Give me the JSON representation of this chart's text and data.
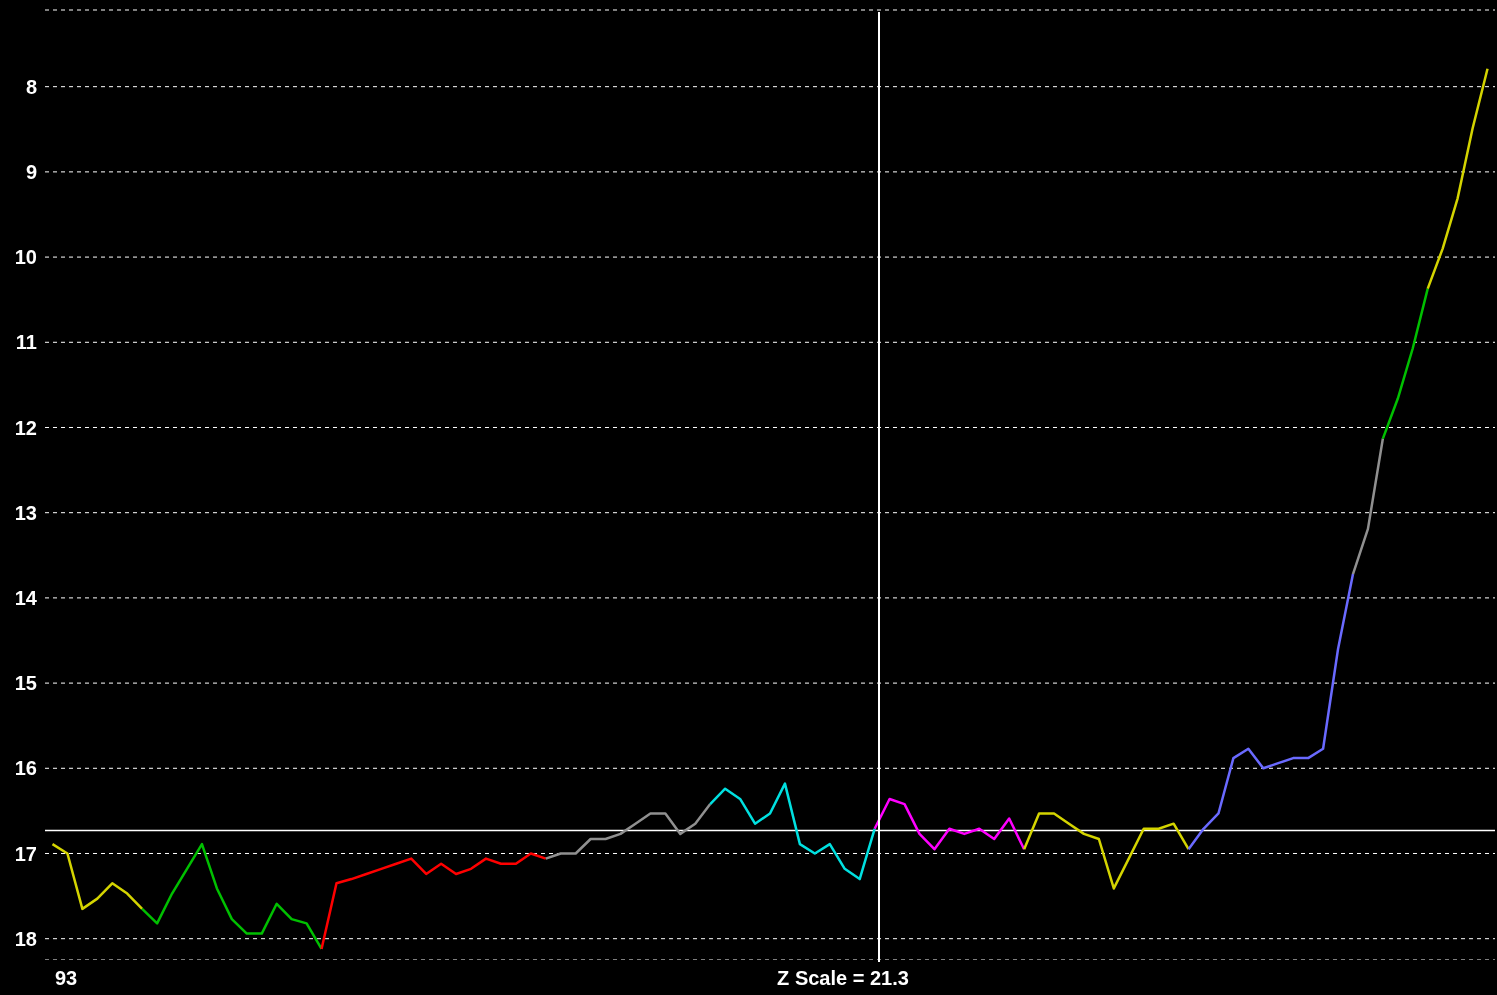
{
  "chart_data": {
    "type": "line",
    "categories": [
      null,
      null,
      null,
      null,
      null,
      null,
      null,
      null,
      null,
      null,
      null,
      null,
      null,
      null,
      null,
      null,
      null,
      null,
      null,
      null,
      null,
      null,
      null,
      null,
      null,
      null,
      null,
      null,
      null,
      null,
      null,
      null,
      null,
      null,
      null,
      null,
      null,
      null,
      null,
      null,
      null,
      null,
      null,
      null,
      null,
      null,
      null,
      null,
      null,
      null,
      null,
      null,
      null,
      null,
      null,
      null,
      null,
      null,
      null,
      null,
      null,
      null,
      null,
      null,
      null,
      null,
      null,
      null,
      null,
      null,
      null,
      null,
      null,
      null,
      null,
      null,
      null,
      null,
      null,
      null,
      null,
      null,
      null,
      null,
      null,
      null,
      null,
      null,
      null,
      null,
      null,
      null,
      null,
      null,
      null,
      null,
      null
    ],
    "series": [
      {
        "color": "#d4d400",
        "values": [
          16.89,
          17.0,
          17.65,
          17.53,
          17.35,
          17.47,
          17.65,
          null,
          null,
          null,
          null,
          null,
          null,
          null,
          null,
          null,
          null,
          null,
          null,
          null,
          null,
          null,
          null,
          null,
          null,
          null,
          null,
          null,
          null,
          null,
          null,
          null,
          null,
          null,
          null,
          null,
          null,
          null,
          null,
          null,
          null,
          null,
          null,
          null,
          null,
          null,
          null,
          null,
          null,
          null,
          null,
          null,
          null,
          null,
          null,
          null,
          null,
          null,
          null,
          null,
          null,
          null,
          null,
          null,
          null,
          null,
          null,
          null,
          null,
          null,
          null,
          null,
          null,
          null,
          null,
          null,
          null,
          null,
          null,
          null,
          null,
          null,
          null,
          null,
          null,
          null,
          null,
          null,
          null,
          null,
          null,
          null,
          null,
          null,
          null,
          null,
          null
        ]
      },
      {
        "color": "#00c000",
        "values": [
          null,
          null,
          null,
          null,
          null,
          null,
          17.65,
          17.82,
          17.47,
          17.18,
          16.89,
          17.41,
          17.77,
          17.94,
          17.94,
          17.59,
          17.77,
          17.82,
          18.12,
          null,
          null,
          null,
          null,
          null,
          null,
          null,
          null,
          null,
          null,
          null,
          null,
          null,
          null,
          null,
          null,
          null,
          null,
          null,
          null,
          null,
          null,
          null,
          null,
          null,
          null,
          null,
          null,
          null,
          null,
          null,
          null,
          null,
          null,
          null,
          null,
          null,
          null,
          null,
          null,
          null,
          null,
          null,
          null,
          null,
          null,
          null,
          null,
          null,
          null,
          null,
          null,
          null,
          null,
          null,
          null,
          null,
          null,
          null,
          null,
          null,
          null,
          null,
          null,
          null,
          null,
          null,
          null,
          null,
          null,
          null,
          null,
          null,
          null,
          null,
          null,
          null,
          null
        ]
      },
      {
        "color": "#ff0000",
        "values": [
          null,
          null,
          null,
          null,
          null,
          null,
          null,
          null,
          null,
          null,
          null,
          null,
          null,
          null,
          null,
          null,
          null,
          null,
          18.12,
          17.35,
          17.3,
          17.24,
          17.18,
          17.12,
          17.06,
          17.24,
          17.12,
          17.24,
          17.18,
          17.06,
          17.12,
          17.12,
          17.0,
          17.06,
          null,
          null,
          null,
          null,
          null,
          null,
          null,
          null,
          null,
          null,
          null,
          null,
          null,
          null,
          null,
          null,
          null,
          null,
          null,
          null,
          null,
          null,
          null,
          null,
          null,
          null,
          null,
          null,
          null,
          null,
          null,
          null,
          null,
          null,
          null,
          null,
          null,
          null,
          null,
          null,
          null,
          null,
          null,
          null,
          null,
          null,
          null,
          null,
          null,
          null,
          null,
          null,
          null,
          null,
          null,
          null,
          null,
          null,
          null,
          null,
          null,
          null,
          null
        ]
      },
      {
        "color": "#909090",
        "values": [
          null,
          null,
          null,
          null,
          null,
          null,
          null,
          null,
          null,
          null,
          null,
          null,
          null,
          null,
          null,
          null,
          null,
          null,
          null,
          null,
          null,
          null,
          null,
          null,
          null,
          null,
          null,
          null,
          null,
          null,
          null,
          null,
          null,
          17.06,
          17.0,
          17.0,
          16.83,
          16.83,
          16.77,
          16.65,
          16.53,
          16.53,
          16.77,
          16.65,
          16.42,
          null,
          null,
          null,
          null,
          null,
          null,
          null,
          null,
          null,
          null,
          null,
          null,
          null,
          null,
          null,
          null,
          null,
          null,
          null,
          null,
          null,
          null,
          null,
          null,
          null,
          null,
          null,
          null,
          null,
          null,
          null,
          null,
          null,
          null,
          null,
          null,
          null,
          null,
          null,
          null,
          null,
          null,
          null,
          null,
          null,
          null,
          null,
          null,
          null,
          null,
          null,
          null
        ]
      },
      {
        "color": "#00e0e0",
        "values": [
          null,
          null,
          null,
          null,
          null,
          null,
          null,
          null,
          null,
          null,
          null,
          null,
          null,
          null,
          null,
          null,
          null,
          null,
          null,
          null,
          null,
          null,
          null,
          null,
          null,
          null,
          null,
          null,
          null,
          null,
          null,
          null,
          null,
          null,
          null,
          null,
          null,
          null,
          null,
          null,
          null,
          null,
          null,
          null,
          16.42,
          16.24,
          16.36,
          16.65,
          16.53,
          16.18,
          16.89,
          17.0,
          16.89,
          17.18,
          17.3,
          16.71,
          null,
          null,
          null,
          null,
          null,
          null,
          null,
          null,
          null,
          null,
          null,
          null,
          null,
          null,
          null,
          null,
          null,
          null,
          null,
          null,
          null,
          null,
          null,
          null,
          null,
          null,
          null,
          null,
          null,
          null,
          null,
          null,
          null,
          null,
          null,
          null,
          null,
          null,
          null,
          null,
          null
        ]
      },
      {
        "color": "#ff00ff",
        "values": [
          null,
          null,
          null,
          null,
          null,
          null,
          null,
          null,
          null,
          null,
          null,
          null,
          null,
          null,
          null,
          null,
          null,
          null,
          null,
          null,
          null,
          null,
          null,
          null,
          null,
          null,
          null,
          null,
          null,
          null,
          null,
          null,
          null,
          null,
          null,
          null,
          null,
          null,
          null,
          null,
          null,
          null,
          null,
          null,
          null,
          null,
          null,
          null,
          null,
          null,
          null,
          null,
          null,
          null,
          null,
          16.71,
          16.36,
          16.42,
          16.77,
          16.95,
          16.71,
          16.77,
          16.71,
          16.83,
          16.59,
          16.95,
          null,
          null,
          null,
          null,
          null,
          null,
          null,
          null,
          null,
          null,
          null,
          null,
          null,
          null,
          null,
          null,
          null,
          null,
          null,
          null,
          null,
          null,
          null,
          null,
          null,
          null,
          null,
          null,
          null,
          null,
          null
        ]
      },
      {
        "color": "#d4d400",
        "values": [
          null,
          null,
          null,
          null,
          null,
          null,
          null,
          null,
          null,
          null,
          null,
          null,
          null,
          null,
          null,
          null,
          null,
          null,
          null,
          null,
          null,
          null,
          null,
          null,
          null,
          null,
          null,
          null,
          null,
          null,
          null,
          null,
          null,
          null,
          null,
          null,
          null,
          null,
          null,
          null,
          null,
          null,
          null,
          null,
          null,
          null,
          null,
          null,
          null,
          null,
          null,
          null,
          null,
          null,
          null,
          null,
          null,
          null,
          null,
          null,
          null,
          null,
          null,
          null,
          null,
          16.95,
          16.53,
          16.53,
          16.65,
          16.77,
          16.83,
          17.41,
          17.06,
          16.71,
          16.71,
          16.65,
          16.95,
          null,
          null,
          null,
          null,
          null,
          null,
          null,
          null,
          null,
          null,
          null,
          null,
          null,
          null,
          null,
          null,
          null,
          null,
          null,
          null
        ]
      },
      {
        "color": "#6a6aff",
        "values": [
          null,
          null,
          null,
          null,
          null,
          null,
          null,
          null,
          null,
          null,
          null,
          null,
          null,
          null,
          null,
          null,
          null,
          null,
          null,
          null,
          null,
          null,
          null,
          null,
          null,
          null,
          null,
          null,
          null,
          null,
          null,
          null,
          null,
          null,
          null,
          null,
          null,
          null,
          null,
          null,
          null,
          null,
          null,
          null,
          null,
          null,
          null,
          null,
          null,
          null,
          null,
          null,
          null,
          null,
          null,
          null,
          null,
          null,
          null,
          null,
          null,
          null,
          null,
          null,
          null,
          null,
          null,
          null,
          null,
          null,
          null,
          null,
          null,
          null,
          null,
          null,
          16.95,
          16.71,
          16.53,
          15.88,
          15.77,
          16.0,
          15.94,
          15.88,
          15.88,
          15.77,
          14.6,
          13.72,
          null,
          null,
          null,
          null,
          null,
          null,
          null,
          null,
          null
        ]
      },
      {
        "color": "#909090",
        "values": [
          null,
          null,
          null,
          null,
          null,
          null,
          null,
          null,
          null,
          null,
          null,
          null,
          null,
          null,
          null,
          null,
          null,
          null,
          null,
          null,
          null,
          null,
          null,
          null,
          null,
          null,
          null,
          null,
          null,
          null,
          null,
          null,
          null,
          null,
          null,
          null,
          null,
          null,
          null,
          null,
          null,
          null,
          null,
          null,
          null,
          null,
          null,
          null,
          null,
          null,
          null,
          null,
          null,
          null,
          null,
          null,
          null,
          null,
          null,
          null,
          null,
          null,
          null,
          null,
          null,
          null,
          null,
          null,
          null,
          null,
          null,
          null,
          null,
          null,
          null,
          null,
          null,
          null,
          null,
          null,
          null,
          null,
          null,
          null,
          null,
          null,
          null,
          13.72,
          13.19,
          12.13,
          null,
          null,
          null,
          null,
          null,
          null,
          null
        ]
      },
      {
        "color": "#00c000",
        "values": [
          null,
          null,
          null,
          null,
          null,
          null,
          null,
          null,
          null,
          null,
          null,
          null,
          null,
          null,
          null,
          null,
          null,
          null,
          null,
          null,
          null,
          null,
          null,
          null,
          null,
          null,
          null,
          null,
          null,
          null,
          null,
          null,
          null,
          null,
          null,
          null,
          null,
          null,
          null,
          null,
          null,
          null,
          null,
          null,
          null,
          null,
          null,
          null,
          null,
          null,
          null,
          null,
          null,
          null,
          null,
          null,
          null,
          null,
          null,
          null,
          null,
          null,
          null,
          null,
          null,
          null,
          null,
          null,
          null,
          null,
          null,
          null,
          null,
          null,
          null,
          null,
          null,
          null,
          null,
          null,
          null,
          null,
          null,
          null,
          null,
          null,
          null,
          null,
          null,
          12.13,
          11.66,
          11.07,
          10.37,
          null,
          null,
          null,
          null
        ]
      },
      {
        "color": "#d4d400",
        "values": [
          null,
          null,
          null,
          null,
          null,
          null,
          null,
          null,
          null,
          null,
          null,
          null,
          null,
          null,
          null,
          null,
          null,
          null,
          null,
          null,
          null,
          null,
          null,
          null,
          null,
          null,
          null,
          null,
          null,
          null,
          null,
          null,
          null,
          null,
          null,
          null,
          null,
          null,
          null,
          null,
          null,
          null,
          null,
          null,
          null,
          null,
          null,
          null,
          null,
          null,
          null,
          null,
          null,
          null,
          null,
          null,
          null,
          null,
          null,
          null,
          null,
          null,
          null,
          null,
          null,
          null,
          null,
          null,
          null,
          null,
          null,
          null,
          null,
          null,
          null,
          null,
          null,
          null,
          null,
          null,
          null,
          null,
          null,
          null,
          null,
          null,
          null,
          null,
          null,
          null,
          null,
          null,
          10.37,
          9.9,
          9.31,
          8.49,
          7.79
        ]
      }
    ],
    "ylim": [
      18.25,
      7.1
    ],
    "yticks": [
      8,
      9,
      10,
      11,
      12,
      13,
      14,
      15,
      16,
      17,
      18
    ],
    "grid": "y",
    "tick_labels": "y",
    "ref_lines": [
      {
        "axis": "y",
        "value": 16.73,
        "color": "#ffffff"
      }
    ],
    "annotations": [
      "93",
      "Z Scale = 21.3"
    ]
  }
}
